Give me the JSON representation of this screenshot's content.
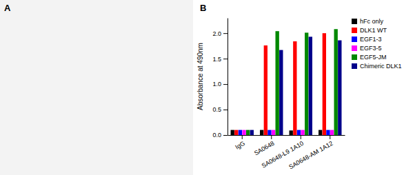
{
  "chart_data": {
    "type": "bar",
    "title": "B",
    "annotations": [
      "A"
    ],
    "ylabel": "Absorbance at 490nm",
    "categories": [
      "IgG",
      "SA0648",
      "SA0648-L9 1A10",
      "SA0648-AM 1A12"
    ],
    "series": [
      {
        "name": "hFc only",
        "color": "#000000",
        "values": [
          0.1,
          0.1,
          0.09,
          0.1
        ]
      },
      {
        "name": "DLK1 WT",
        "color": "#ff0000",
        "values": [
          0.1,
          1.76,
          1.84,
          2.0
        ]
      },
      {
        "name": "EGF1-3",
        "color": "#0000ff",
        "values": [
          0.1,
          0.1,
          0.1,
          0.1
        ]
      },
      {
        "name": "EGF3-5",
        "color": "#ff00ff",
        "values": [
          0.1,
          0.1,
          0.1,
          0.1
        ]
      },
      {
        "name": "EGF5-JM",
        "color": "#008800",
        "values": [
          0.1,
          2.04,
          2.01,
          2.08
        ]
      },
      {
        "name": "Chimeric DLK1",
        "color": "#00008b",
        "values": [
          0.1,
          1.67,
          1.93,
          1.86
        ]
      }
    ],
    "ylim": [
      0.0,
      2.3
    ],
    "yticks": [
      {
        "value": 0,
        "label": "0.0"
      },
      0.5,
      {
        "value": 1,
        "label": "1.0"
      },
      1.5,
      {
        "value": 2,
        "label": "2.0"
      }
    ],
    "legend": "upper right",
    "grid": false
  }
}
